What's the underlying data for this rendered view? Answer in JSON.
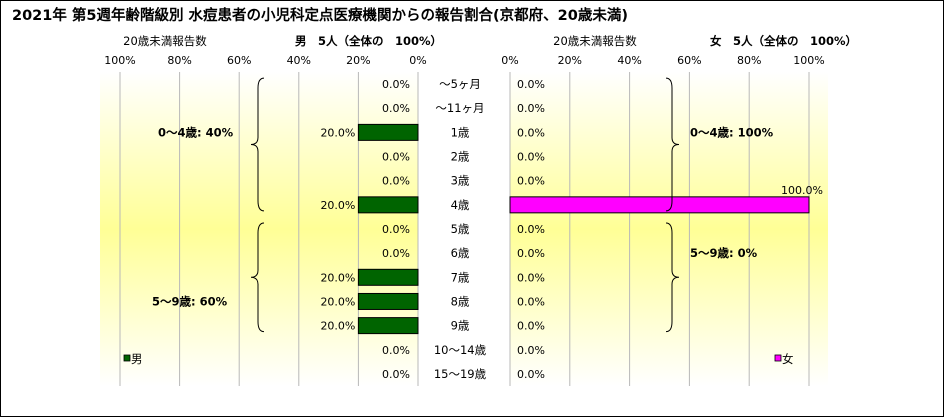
{
  "title": "2021年 第5週年齢階級別 水痘患者の小児科定点医療機関からの報告割合(京都府、20歳未満)",
  "chart_data": [
    {
      "type": "bar",
      "orientation": "horizontal",
      "direction": "right-to-left",
      "subtitle_left": "20歳未満報告数",
      "subtitle_right": "男　5人（全体の　100%）",
      "legend": "男",
      "legend_position": "bottom-left",
      "color": "#006400",
      "xlim": [
        0,
        100
      ],
      "x_ticks": [
        "100%",
        "80%",
        "60%",
        "40%",
        "20%",
        "0%"
      ],
      "categories": [
        "～5ヶ月",
        "～11ヶ月",
        "1歳",
        "2歳",
        "3歳",
        "4歳",
        "5歳",
        "6歳",
        "7歳",
        "8歳",
        "9歳",
        "10～14歳",
        "15～19歳"
      ],
      "values": [
        0,
        0,
        20,
        0,
        0,
        20,
        0,
        0,
        20,
        20,
        20,
        0,
        0
      ],
      "value_labels": [
        "0.0%",
        "0.0%",
        "20.0%",
        "0.0%",
        "0.0%",
        "20.0%",
        "0.0%",
        "0.0%",
        "20.0%",
        "20.0%",
        "20.0%",
        "0.0%",
        "0.0%"
      ],
      "annotations": [
        "0～4歳: 40%",
        "5～9歳: 60%"
      ]
    },
    {
      "type": "bar",
      "orientation": "horizontal",
      "direction": "left-to-right",
      "subtitle_left": "20歳未満報告数",
      "subtitle_right": "女　5人（全体の　100%）",
      "legend": "女",
      "legend_position": "bottom-right",
      "color": "#ff00ff",
      "xlim": [
        0,
        100
      ],
      "x_ticks": [
        "0%",
        "20%",
        "40%",
        "60%",
        "80%",
        "100%"
      ],
      "categories": [
        "～5ヶ月",
        "～11ヶ月",
        "1歳",
        "2歳",
        "3歳",
        "4歳",
        "5歳",
        "6歳",
        "7歳",
        "8歳",
        "9歳",
        "10～14歳",
        "15～19歳"
      ],
      "values": [
        0,
        0,
        0,
        0,
        0,
        100,
        0,
        0,
        0,
        0,
        0,
        0,
        0
      ],
      "value_labels": [
        "0.0%",
        "0.0%",
        "0.0%",
        "0.0%",
        "0.0%",
        "100.0%",
        "0.0%",
        "0.0%",
        "0.0%",
        "0.0%",
        "0.0%",
        "0.0%",
        "0.0%"
      ],
      "annotations": [
        "0～4歳: 100%",
        "5～9歳: 0%"
      ]
    }
  ]
}
